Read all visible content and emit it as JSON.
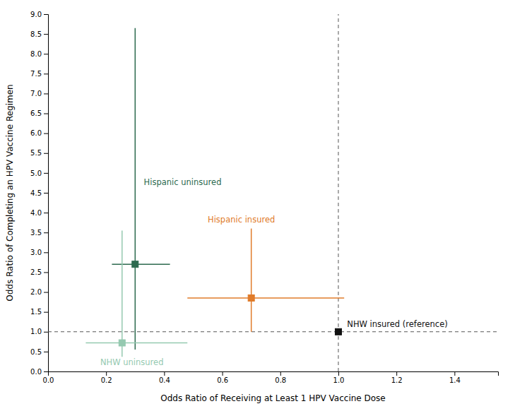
{
  "chart_data": {
    "type": "scatter",
    "xlabel": "Odds Ratio of Receiving at Least 1 HPV Vaccine Dose",
    "ylabel": "Odds Ratio of Completing an HPV Vaccine Regimen",
    "xlim": [
      0.0,
      1.55
    ],
    "ylim": [
      0.0,
      9.0
    ],
    "xticks": [
      {
        "value": 0.0,
        "label": "0.0"
      },
      {
        "value": 0.2,
        "label": "0.2"
      },
      {
        "value": 0.4,
        "label": "0.4"
      },
      {
        "value": 0.6,
        "label": "0.6"
      },
      {
        "value": 0.8,
        "label": "0.8"
      },
      {
        "value": 1.0,
        "label": "1.0"
      },
      {
        "value": 1.2,
        "label": "1.2"
      },
      {
        "value": 1.4,
        "label": "1.4"
      }
    ],
    "yticks": [
      {
        "value": 0.0,
        "label": "0.0"
      },
      {
        "value": 0.5,
        "label": "0.5"
      },
      {
        "value": 1.0,
        "label": "1.0"
      },
      {
        "value": 1.5,
        "label": "1.5"
      },
      {
        "value": 2.0,
        "label": "2.0"
      },
      {
        "value": 2.5,
        "label": "2.5"
      },
      {
        "value": 3.0,
        "label": "3.0"
      },
      {
        "value": 3.5,
        "label": "3.5"
      },
      {
        "value": 4.0,
        "label": "4.0"
      },
      {
        "value": 4.5,
        "label": "4.5"
      },
      {
        "value": 5.0,
        "label": "5.0"
      },
      {
        "value": 5.5,
        "label": "5.5"
      },
      {
        "value": 6.0,
        "label": "6.0"
      },
      {
        "value": 6.5,
        "label": "6.5"
      },
      {
        "value": 7.0,
        "label": "7.0"
      },
      {
        "value": 7.5,
        "label": "7.5"
      },
      {
        "value": 8.0,
        "label": "8.0"
      },
      {
        "value": 8.5,
        "label": "8.5"
      },
      {
        "value": 9.0,
        "label": "9.0"
      }
    ],
    "reference_lines": {
      "x": 1.0,
      "y": 1.0,
      "color": "#555555",
      "line_style": "dashed"
    },
    "points": [
      {
        "label": "Hispanic uninsured",
        "x": 0.3,
        "y": 2.7,
        "x_lo": 0.22,
        "x_hi": 0.42,
        "y_lo": 0.55,
        "y_hi": 8.65,
        "color": "#2d6a4f",
        "marker": "square",
        "label_x": 0.33,
        "label_y": 4.7
      },
      {
        "label": "NHW uninsured",
        "x": 0.255,
        "y": 0.72,
        "x_lo": 0.13,
        "x_hi": 0.48,
        "y_lo": 0.37,
        "y_hi": 3.55,
        "color": "#95c9b0",
        "marker": "square",
        "label_x": 0.18,
        "label_y": 0.16
      },
      {
        "label": "Hispanic insured",
        "x": 0.7,
        "y": 1.85,
        "x_lo": 0.48,
        "x_hi": 1.02,
        "y_lo": 1.0,
        "y_hi": 3.6,
        "color": "#e07b2a",
        "marker": "square",
        "label_x": 0.55,
        "label_y": 3.75
      },
      {
        "label": "NHW insured (reference)",
        "x": 1.0,
        "y": 1.0,
        "color": "#111111",
        "marker": "square",
        "label_x": 1.03,
        "label_y": 1.12
      }
    ]
  }
}
